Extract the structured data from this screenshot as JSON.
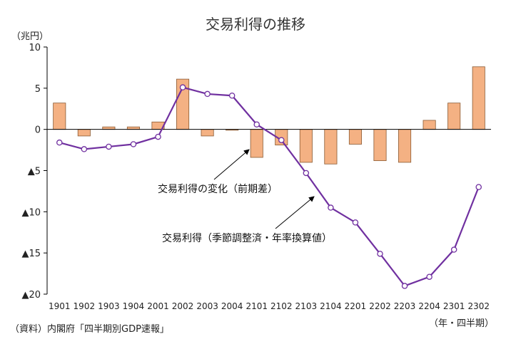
{
  "chart_data": {
    "type": "bar+line",
    "title": "交易利得の推移",
    "y_unit_label": "（兆円）",
    "x_unit_label": "（年・四半期）",
    "source": "（資料）内閣府「四半期別GDP速報」",
    "categories": [
      "1901",
      "1902",
      "1903",
      "1904",
      "2001",
      "2002",
      "2003",
      "2004",
      "2101",
      "2102",
      "2103",
      "2104",
      "2201",
      "2202",
      "2203",
      "2204",
      "2301",
      "2302"
    ],
    "ylim": [
      -20,
      10
    ],
    "yticks": [
      {
        "value": 10,
        "label": "10"
      },
      {
        "value": 5,
        "label": "5"
      },
      {
        "value": 0,
        "label": "0"
      },
      {
        "value": -5,
        "label": "▲5"
      },
      {
        "value": -10,
        "label": "▲10"
      },
      {
        "value": -15,
        "label": "▲15"
      },
      {
        "value": -20,
        "label": "▲20"
      }
    ],
    "series": [
      {
        "name": "交易利得の変化（前期差）",
        "kind": "bar",
        "color": "#F4B183",
        "values": [
          3.2,
          -0.8,
          0.3,
          0.3,
          0.9,
          6.1,
          -0.8,
          -0.1,
          -3.4,
          -1.9,
          -4.0,
          -4.2,
          -1.8,
          -3.8,
          -4.0,
          1.1,
          3.2,
          7.6
        ]
      },
      {
        "name": "交易利得（季節調整済・年率換算値）",
        "kind": "line",
        "color": "#7030A0",
        "values": [
          -1.6,
          -2.4,
          -2.1,
          -1.8,
          -0.9,
          5.1,
          4.3,
          4.1,
          0.6,
          -1.3,
          -5.3,
          -9.5,
          -11.3,
          -15.1,
          -19.0,
          -17.9,
          -14.6,
          -7.0
        ]
      }
    ],
    "annotations": [
      {
        "text": "交易利得の変化（前期差）",
        "points_to_series": 0
      },
      {
        "text": "交易利得（季節調整済・年率換算値）",
        "points_to_series": 1
      }
    ],
    "grid": false,
    "legend": "none"
  }
}
